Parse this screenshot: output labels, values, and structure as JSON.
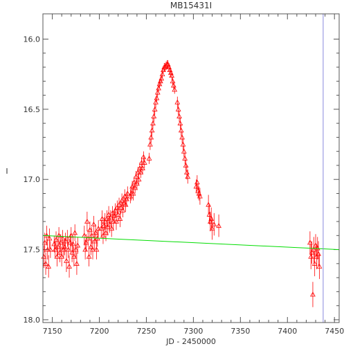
{
  "chart_data": {
    "type": "scatter",
    "title": "MB15431I",
    "xlabel": "JD - 2450000",
    "ylabel": "I",
    "xlim": [
      7140,
      7455
    ],
    "ylim": [
      18.02,
      15.82
    ],
    "y_inverted": true,
    "xticks": [
      7150,
      7200,
      7250,
      7300,
      7350,
      7400,
      7450
    ],
    "yticks": [
      16.0,
      16.5,
      17.0,
      17.5,
      18.0
    ],
    "xtick_labels": [
      "7150",
      "7200",
      "7250",
      "7300",
      "7350",
      "7400",
      "7450"
    ],
    "ytick_labels": [
      "16.0",
      "16.5",
      "17.0",
      "17.5",
      "18.0"
    ],
    "grid": false,
    "marker": "open-triangle",
    "colors": {
      "data": "#ff0000",
      "baseline": "#00dd00",
      "marker_line": "#8888dd",
      "axes": "#555555"
    },
    "baseline": {
      "x": [
        7140,
        7455
      ],
      "y": [
        17.4,
        17.5
      ]
    },
    "vertical_line_x": 7438,
    "series": [
      {
        "points": [
          [
            7141,
            17.55,
            0.08
          ],
          [
            7142,
            17.45,
            0.07
          ],
          [
            7143,
            17.6,
            0.08
          ],
          [
            7144,
            17.4,
            0.07
          ],
          [
            7145,
            17.5,
            0.07
          ],
          [
            7146,
            17.62,
            0.08
          ],
          [
            7147,
            17.42,
            0.07
          ],
          [
            7148,
            17.5,
            0.06
          ],
          [
            7152,
            17.46,
            0.06
          ],
          [
            7153,
            17.5,
            0.06
          ],
          [
            7154,
            17.43,
            0.06
          ],
          [
            7155,
            17.55,
            0.07
          ],
          [
            7156,
            17.48,
            0.06
          ],
          [
            7157,
            17.4,
            0.06
          ],
          [
            7158,
            17.52,
            0.07
          ],
          [
            7159,
            17.45,
            0.06
          ],
          [
            7160,
            17.55,
            0.07
          ],
          [
            7161,
            17.42,
            0.06
          ],
          [
            7162,
            17.5,
            0.06
          ],
          [
            7163,
            17.48,
            0.06
          ],
          [
            7164,
            17.44,
            0.06
          ],
          [
            7165,
            17.58,
            0.08
          ],
          [
            7166,
            17.42,
            0.06
          ],
          [
            7167,
            17.5,
            0.06
          ],
          [
            7168,
            17.62,
            0.08
          ],
          [
            7169,
            17.45,
            0.06
          ],
          [
            7170,
            17.4,
            0.06
          ],
          [
            7171,
            17.52,
            0.07
          ],
          [
            7172,
            17.46,
            0.06
          ],
          [
            7173,
            17.55,
            0.07
          ],
          [
            7174,
            17.38,
            0.06
          ],
          [
            7175,
            17.5,
            0.06
          ],
          [
            7176,
            17.6,
            0.08
          ],
          [
            7177,
            17.47,
            0.06
          ],
          [
            7184,
            17.4,
            0.07
          ],
          [
            7185,
            17.5,
            0.07
          ],
          [
            7186,
            17.45,
            0.06
          ],
          [
            7187,
            17.3,
            0.07
          ],
          [
            7188,
            17.42,
            0.06
          ],
          [
            7189,
            17.55,
            0.07
          ],
          [
            7190,
            17.36,
            0.06
          ],
          [
            7191,
            17.48,
            0.06
          ],
          [
            7192,
            17.4,
            0.06
          ],
          [
            7193,
            17.5,
            0.07
          ],
          [
            7194,
            17.32,
            0.06
          ],
          [
            7195,
            17.44,
            0.06
          ],
          [
            7196,
            17.38,
            0.06
          ],
          [
            7197,
            17.5,
            0.07
          ],
          [
            7198,
            17.42,
            0.06
          ],
          [
            7199,
            17.35,
            0.06
          ],
          [
            7202,
            17.35,
            0.06
          ],
          [
            7203,
            17.28,
            0.06
          ],
          [
            7204,
            17.4,
            0.06
          ],
          [
            7205,
            17.33,
            0.06
          ],
          [
            7206,
            17.3,
            0.06
          ],
          [
            7207,
            17.38,
            0.06
          ],
          [
            7208,
            17.28,
            0.06
          ],
          [
            7209,
            17.34,
            0.06
          ],
          [
            7210,
            17.25,
            0.06
          ],
          [
            7211,
            17.32,
            0.06
          ],
          [
            7212,
            17.27,
            0.05
          ],
          [
            7213,
            17.35,
            0.06
          ],
          [
            7214,
            17.24,
            0.05
          ],
          [
            7215,
            17.3,
            0.06
          ],
          [
            7216,
            17.26,
            0.05
          ],
          [
            7217,
            17.22,
            0.05
          ],
          [
            7218,
            17.3,
            0.06
          ],
          [
            7219,
            17.2,
            0.05
          ],
          [
            7220,
            17.25,
            0.05
          ],
          [
            7221,
            17.18,
            0.05
          ],
          [
            7222,
            17.28,
            0.06
          ],
          [
            7223,
            17.2,
            0.05
          ],
          [
            7224,
            17.15,
            0.05
          ],
          [
            7225,
            17.22,
            0.05
          ],
          [
            7226,
            17.17,
            0.05
          ],
          [
            7227,
            17.12,
            0.05
          ],
          [
            7228,
            17.18,
            0.05
          ],
          [
            7229,
            17.14,
            0.05
          ],
          [
            7230,
            17.1,
            0.05
          ],
          [
            7233,
            17.12,
            0.05
          ],
          [
            7234,
            17.1,
            0.05
          ],
          [
            7235,
            17.05,
            0.04
          ],
          [
            7236,
            17.1,
            0.05
          ],
          [
            7237,
            17.02,
            0.04
          ],
          [
            7238,
            17.06,
            0.04
          ],
          [
            7239,
            16.98,
            0.04
          ],
          [
            7240,
            17.03,
            0.04
          ],
          [
            7241,
            16.95,
            0.04
          ],
          [
            7242,
            17.0,
            0.04
          ],
          [
            7243,
            16.92,
            0.04
          ],
          [
            7244,
            16.95,
            0.04
          ],
          [
            7245,
            16.88,
            0.04
          ],
          [
            7246,
            16.92,
            0.04
          ],
          [
            7247,
            16.84,
            0.04
          ],
          [
            7248,
            16.88,
            0.04
          ],
          [
            7253,
            16.85,
            0.04
          ],
          [
            7254,
            16.75,
            0.04
          ],
          [
            7255,
            16.7,
            0.04
          ],
          [
            7256,
            16.65,
            0.04
          ],
          [
            7257,
            16.6,
            0.04
          ],
          [
            7258,
            16.55,
            0.04
          ],
          [
            7259,
            16.5,
            0.04
          ],
          [
            7260,
            16.45,
            0.04
          ],
          [
            7261,
            16.42,
            0.03
          ],
          [
            7262,
            16.38,
            0.03
          ],
          [
            7263,
            16.35,
            0.03
          ],
          [
            7264,
            16.32,
            0.03
          ],
          [
            7265,
            16.3,
            0.03
          ],
          [
            7266,
            16.28,
            0.03
          ],
          [
            7267,
            16.25,
            0.03
          ],
          [
            7268,
            16.22,
            0.03
          ],
          [
            7269,
            16.2,
            0.03
          ],
          [
            7270,
            16.2,
            0.03
          ],
          [
            7271,
            16.19,
            0.03
          ],
          [
            7272,
            16.18,
            0.03
          ],
          [
            7273,
            16.18,
            0.03
          ],
          [
            7274,
            16.2,
            0.03
          ],
          [
            7275,
            16.22,
            0.03
          ],
          [
            7276,
            16.24,
            0.03
          ],
          [
            7277,
            16.26,
            0.03
          ],
          [
            7278,
            16.3,
            0.03
          ],
          [
            7279,
            16.33,
            0.03
          ],
          [
            7280,
            16.36,
            0.03
          ],
          [
            7283,
            16.45,
            0.04
          ],
          [
            7284,
            16.5,
            0.04
          ],
          [
            7285,
            16.55,
            0.04
          ],
          [
            7286,
            16.6,
            0.04
          ],
          [
            7287,
            16.65,
            0.04
          ],
          [
            7288,
            16.7,
            0.04
          ],
          [
            7289,
            16.75,
            0.04
          ],
          [
            7290,
            16.8,
            0.04
          ],
          [
            7291,
            16.85,
            0.04
          ],
          [
            7292,
            16.9,
            0.04
          ],
          [
            7293,
            16.95,
            0.05
          ],
          [
            7294,
            16.98,
            0.05
          ],
          [
            7303,
            17.05,
            0.05
          ],
          [
            7304,
            17.02,
            0.05
          ],
          [
            7305,
            17.08,
            0.05
          ],
          [
            7306,
            17.1,
            0.05
          ],
          [
            7307,
            17.12,
            0.06
          ],
          [
            7316,
            17.18,
            0.07
          ],
          [
            7317,
            17.25,
            0.07
          ],
          [
            7318,
            17.3,
            0.07
          ],
          [
            7319,
            17.28,
            0.08
          ],
          [
            7320,
            17.35,
            0.08
          ],
          [
            7322,
            17.32,
            0.08
          ],
          [
            7327,
            17.33,
            0.08
          ],
          [
            7424,
            17.45,
            0.08
          ],
          [
            7425,
            17.55,
            0.09
          ],
          [
            7426,
            17.52,
            0.08
          ],
          [
            7427,
            17.82,
            0.09
          ],
          [
            7428,
            17.5,
            0.09
          ],
          [
            7429,
            17.6,
            0.09
          ],
          [
            7430,
            17.47,
            0.08
          ],
          [
            7431,
            17.55,
            0.09
          ],
          [
            7432,
            17.49,
            0.08
          ],
          [
            7433,
            17.53,
            0.09
          ],
          [
            7434,
            17.62,
            0.09
          ]
        ]
      }
    ]
  }
}
